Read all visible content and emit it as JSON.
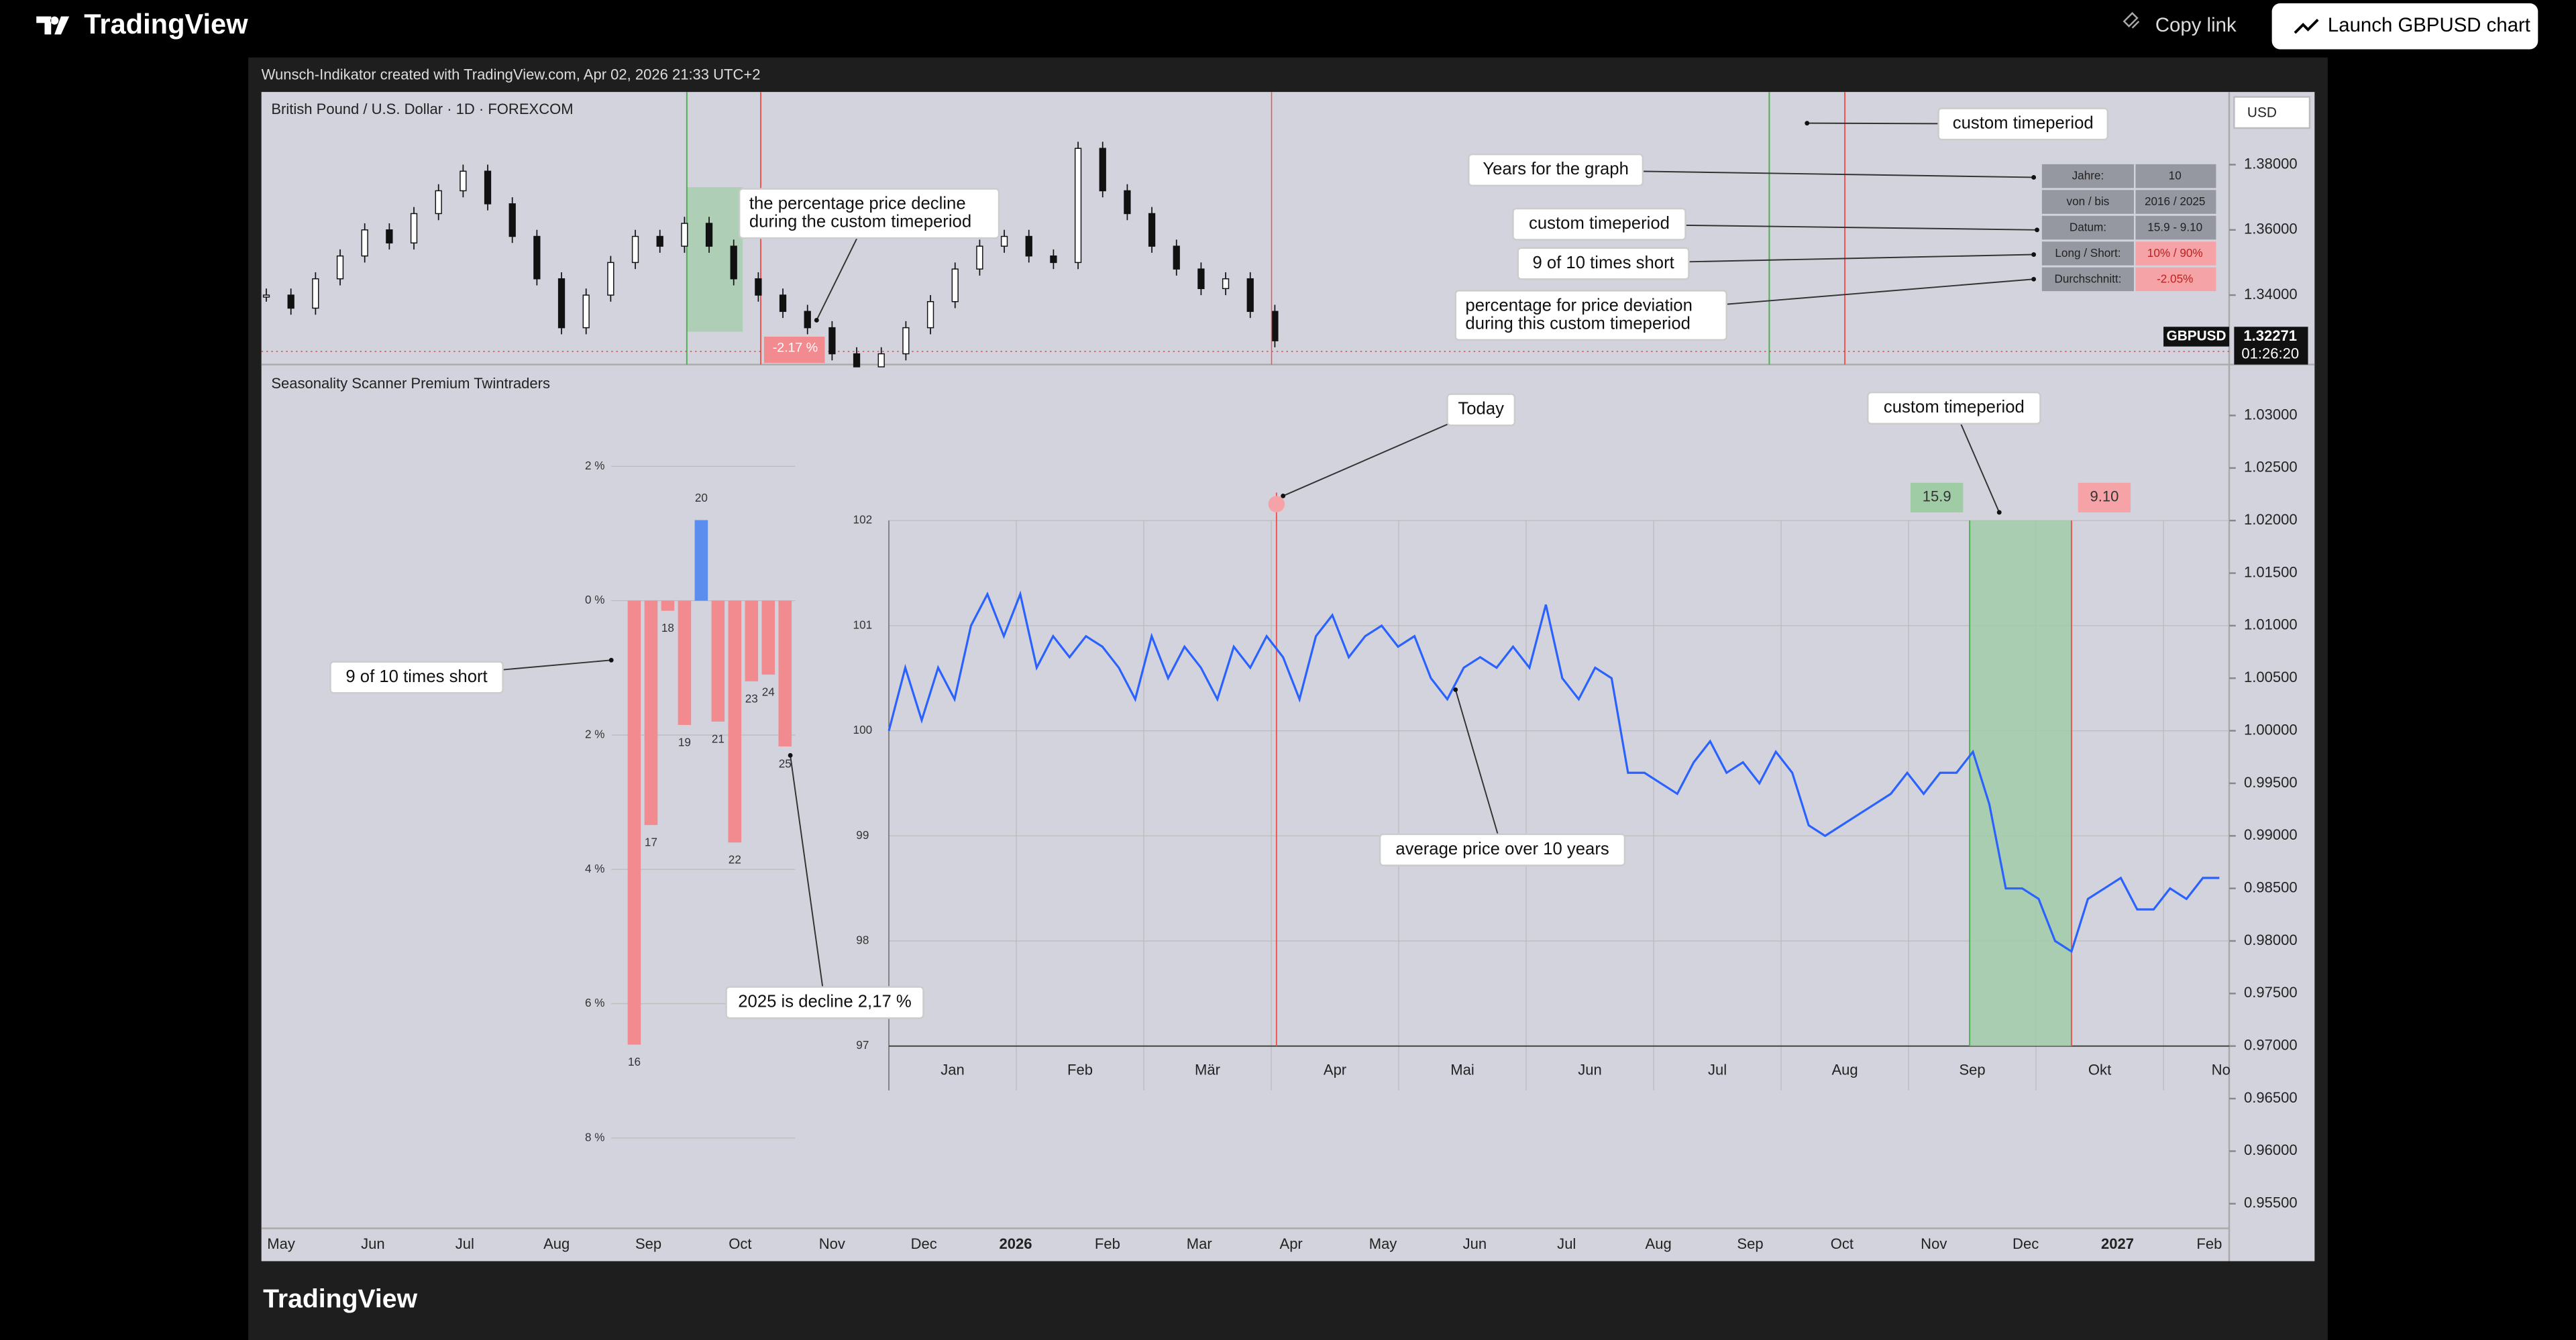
{
  "header": {
    "logo": "TradingView",
    "copy_link": "Copy link",
    "launch": "Launch GBPUSD chart"
  },
  "watermark": "Wunsch-Indikator created with TradingView.com, Apr 02, 2026 21:33 UTC+2",
  "price_pane": {
    "type": "candlestick",
    "symbol": "British Pound / U.S. Dollar · 1D · FOREXCOM",
    "currency": "USD",
    "ylim": [
      1.3187,
      1.4023
    ],
    "yticks": [
      {
        "value": 1.38,
        "label": "1.38000"
      },
      {
        "value": 1.36,
        "label": "1.36000"
      },
      {
        "value": 1.34,
        "label": "1.34000"
      }
    ],
    "ticker": "GBPUSD",
    "last_price": {
      "value": 1.32271,
      "label": "1.32271"
    },
    "countdown": "01:26:20",
    "closes": [
      1.34,
      1.336,
      1.345,
      1.352,
      1.36,
      1.356,
      1.365,
      1.372,
      1.378,
      1.368,
      1.358,
      1.345,
      1.33,
      1.34,
      1.35,
      1.358,
      1.355,
      1.362,
      1.355,
      1.345,
      1.34,
      1.335,
      1.33,
      1.322,
      1.318,
      1.322,
      1.33,
      1.338,
      1.348,
      1.355,
      1.358,
      1.352,
      1.35,
      1.385,
      1.372,
      1.365,
      1.355,
      1.348,
      1.342,
      1.345,
      1.335,
      1.326
    ],
    "decline_label": "-2.17 %",
    "annotations": [
      [
        "the percentage price decline",
        "during the custom timeperiod"
      ],
      [
        "custom timeperiod"
      ],
      [
        "Years for the graph"
      ],
      [
        "custom timeperiod"
      ],
      [
        "9 of 10 times short"
      ],
      [
        "percentage for price deviation",
        "during this custom timeperiod"
      ]
    ]
  },
  "table": {
    "rows": [
      [
        "Jahre:",
        "10"
      ],
      [
        "von / bis",
        "2016 / 2025"
      ],
      [
        "Datum:",
        "15.9 - 9.10"
      ],
      [
        "Long / Short:",
        "10% / 90%"
      ],
      [
        "Durchschnitt:",
        "-2.05%"
      ]
    ]
  },
  "indicator": {
    "title": "Seasonality Scanner Premium Twintraders",
    "yticks": [
      {
        "value": 1.03,
        "label": "1.03000"
      },
      {
        "value": 1.025,
        "label": "1.02500"
      },
      {
        "value": 1.02,
        "label": "1.02000"
      },
      {
        "value": 1.015,
        "label": "1.01500"
      },
      {
        "value": 1.01,
        "label": "1.01000"
      },
      {
        "value": 1.005,
        "label": "1.00500"
      },
      {
        "value": 1.0,
        "label": "1.00000"
      },
      {
        "value": 0.995,
        "label": "0.99500"
      },
      {
        "value": 0.99,
        "label": "0.99000"
      },
      {
        "value": 0.985,
        "label": "0.98500"
      },
      {
        "value": 0.98,
        "label": "0.98000"
      },
      {
        "value": 0.975,
        "label": "0.97500"
      },
      {
        "value": 0.97,
        "label": "0.97000"
      },
      {
        "value": 0.965,
        "label": "0.96500"
      },
      {
        "value": 0.96,
        "label": "0.96000"
      },
      {
        "value": 0.955,
        "label": "0.95500"
      }
    ],
    "bar_chart": {
      "type": "bar",
      "categories": [
        "16",
        "17",
        "18",
        "19",
        "20",
        "21",
        "22",
        "23",
        "24",
        "25"
      ],
      "values": [
        -6.61,
        -3.34,
        -0.15,
        -1.85,
        1.2,
        -1.8,
        -3.6,
        -1.2,
        -1.1,
        -2.17
      ],
      "negative_color": "#f28b8f",
      "positive_color": "#5b8def",
      "ylim": [
        -8,
        2
      ],
      "yticks": [
        {
          "value": 2,
          "label": "2 %"
        },
        {
          "value": 0,
          "label": "0 %"
        },
        {
          "value": -2,
          "label": "2 %"
        },
        {
          "value": -4,
          "label": "4 %"
        },
        {
          "value": -6,
          "label": "6 %"
        },
        {
          "value": -8,
          "label": "8 %"
        }
      ]
    },
    "line_chart": {
      "type": "line",
      "color": "#2962ff",
      "categories": [
        "Jan",
        "Feb",
        "Mär",
        "Apr",
        "Mai",
        "Jun",
        "Jul",
        "Aug",
        "Sep",
        "Okt",
        "No"
      ],
      "ylim": [
        97,
        102
      ],
      "yticks": [
        97,
        98,
        99,
        100,
        101,
        102
      ],
      "values": [
        100.0,
        100.6,
        100.1,
        100.6,
        100.3,
        101.0,
        101.3,
        100.9,
        101.3,
        100.6,
        100.9,
        100.7,
        100.9,
        100.8,
        100.6,
        100.3,
        100.9,
        100.5,
        100.8,
        100.6,
        100.3,
        100.8,
        100.6,
        100.9,
        100.7,
        100.3,
        100.9,
        101.1,
        100.7,
        100.9,
        101.0,
        100.8,
        100.9,
        100.5,
        100.3,
        100.6,
        100.7,
        100.6,
        100.8,
        100.6,
        101.2,
        100.5,
        100.3,
        100.6,
        100.5,
        99.6,
        99.6,
        99.5,
        99.4,
        99.7,
        99.9,
        99.6,
        99.7,
        99.5,
        99.8,
        99.6,
        99.1,
        99.0,
        99.1,
        99.2,
        99.3,
        99.4,
        99.6,
        99.4,
        99.6,
        99.6,
        99.8,
        99.3,
        98.5,
        98.5,
        98.4,
        98.0,
        97.9,
        98.4,
        98.5,
        98.6,
        98.3,
        98.3,
        98.5,
        98.4,
        98.6,
        98.6
      ],
      "start_label": "15.9",
      "end_label": "9.10"
    },
    "annotations": [
      [
        "Today"
      ],
      [
        "custom timeperiod"
      ],
      [
        "9 of 10 times short"
      ],
      [
        "average price over 10 years"
      ],
      [
        "2025 is decline 2,17 %"
      ]
    ]
  },
  "time_axis": [
    "May",
    "Jun",
    "Jul",
    "Aug",
    "Sep",
    "Oct",
    "Nov",
    "Dec",
    "2026",
    "Feb",
    "Mar",
    "Apr",
    "May",
    "Jun",
    "Jul",
    "Aug",
    "Sep",
    "Oct",
    "Nov",
    "Dec",
    "2027",
    "Feb"
  ],
  "footer": "TradingView"
}
